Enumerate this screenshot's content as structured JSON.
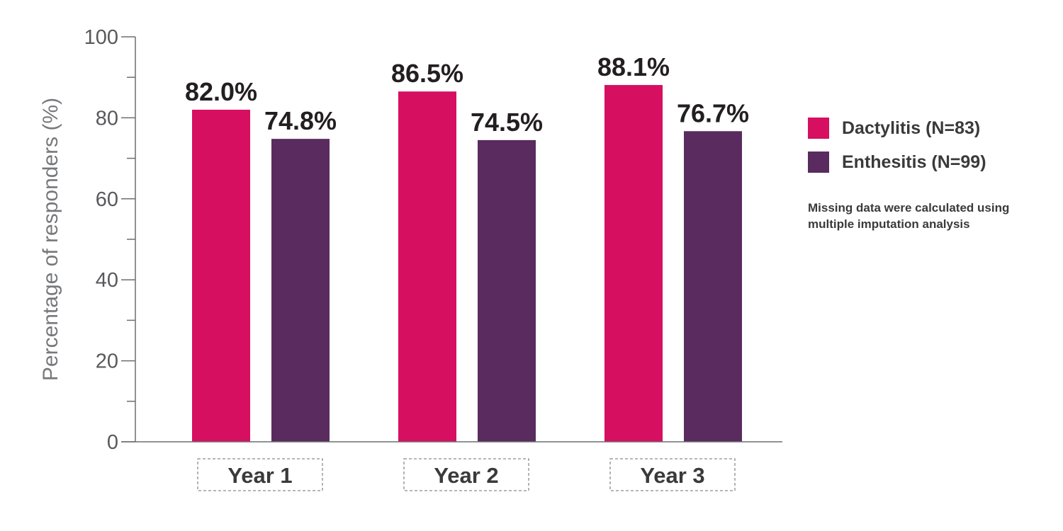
{
  "chart_data": {
    "type": "bar",
    "categories": [
      "Year 1",
      "Year 2",
      "Year 3"
    ],
    "series": [
      {
        "name": "Dactylitis (N=83)",
        "values": [
          82.0,
          86.5,
          88.1
        ],
        "labels": [
          "82.0%",
          "86.5%",
          "88.1%"
        ],
        "color": "#d60f61"
      },
      {
        "name": "Enthesitis (N=99)",
        "values": [
          74.8,
          74.5,
          76.7
        ],
        "labels": [
          "74.8%",
          "74.5%",
          "76.7%"
        ],
        "color": "#592b5e"
      }
    ],
    "ylabel": "Percentage of responders (%)",
    "ylim": [
      0,
      100
    ],
    "yticks": [
      0,
      20,
      40,
      60,
      80,
      100
    ],
    "yticks_minor": [
      10,
      30,
      50,
      70,
      90
    ],
    "grid": false,
    "legend_position": "right",
    "note": "Missing data were calculated using multiple imputation analysis"
  }
}
